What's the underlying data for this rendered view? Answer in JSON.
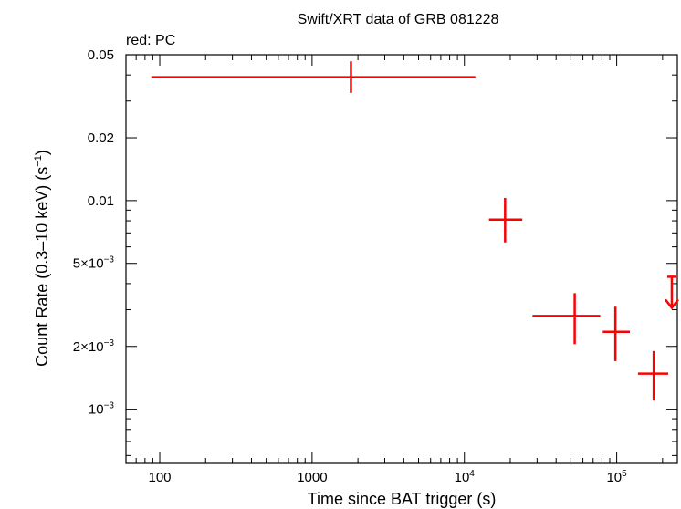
{
  "chart_data": {
    "type": "scatter",
    "title": "Swift/XRT data of GRB 081228",
    "subtitle": "red: PC",
    "xlabel": "Time since BAT trigger (s)",
    "ylabel_main": "Count Rate (0.3–10 keV) (s",
    "ylabel_sup": "−1",
    "ylabel_end": ")",
    "x_scale": "log",
    "y_scale": "log",
    "xlim": [
      60,
      250000
    ],
    "ylim": [
      0.00055,
      0.05
    ],
    "x_ticks": [
      {
        "value": 100,
        "label": "100"
      },
      {
        "value": 1000,
        "label": "1000"
      },
      {
        "value": 10000,
        "base": "10",
        "exp": "4"
      },
      {
        "value": 100000,
        "base": "10",
        "exp": "5"
      }
    ],
    "y_ticks": [
      {
        "value": 0.05,
        "label": "0.05"
      },
      {
        "value": 0.02,
        "label": "0.02"
      },
      {
        "value": 0.01,
        "label": "0.01"
      },
      {
        "value": 0.005,
        "mant": "5×10",
        "exp": "−3"
      },
      {
        "value": 0.002,
        "mant": "2×10",
        "exp": "−3"
      },
      {
        "value": 0.001,
        "mant": "10",
        "exp": "−3"
      }
    ],
    "series_color": "#ff0000",
    "series": [
      {
        "points": [
          {
            "x": 1800,
            "xlo": 88,
            "xhi": 11800,
            "y": 0.039,
            "ylo": 0.0328,
            "yhi": 0.0465
          },
          {
            "x": 18500,
            "xlo": 14500,
            "xhi": 24000,
            "y": 0.0081,
            "ylo": 0.0063,
            "yhi": 0.0103
          },
          {
            "x": 53000,
            "xlo": 28000,
            "xhi": 78000,
            "y": 0.0028,
            "ylo": 0.00205,
            "yhi": 0.0036
          },
          {
            "x": 98000,
            "xlo": 81000,
            "xhi": 122000,
            "y": 0.00235,
            "ylo": 0.0017,
            "yhi": 0.0031
          },
          {
            "x": 175000,
            "xlo": 138000,
            "xhi": 218000,
            "y": 0.00148,
            "ylo": 0.0011,
            "yhi": 0.0019
          }
        ],
        "upper_limits": [
          {
            "x": 230000,
            "y": 0.0039
          }
        ]
      }
    ]
  }
}
